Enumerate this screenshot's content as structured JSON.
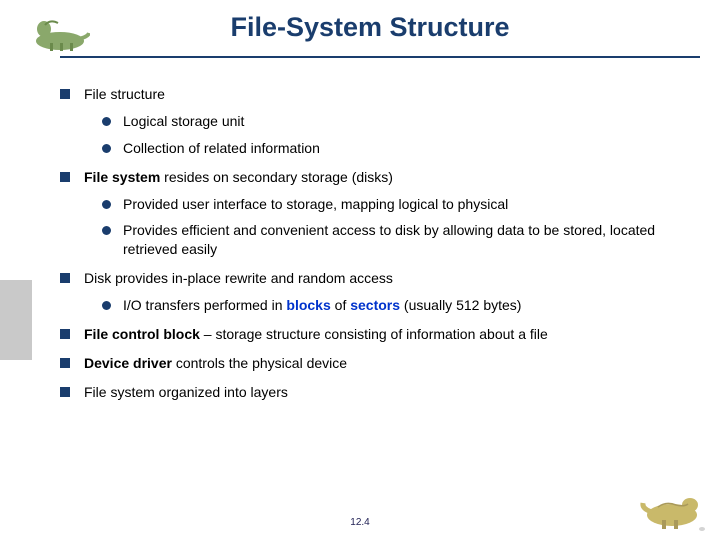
{
  "page": {
    "title": "File-System Structure",
    "pageNumber": "12.4"
  },
  "colors": {
    "heading": "#1a3d6d",
    "bulletSquare": "#1a3d6d",
    "bulletDot": "#1a3d6d",
    "link": "#0033cc",
    "sidebar": "#c9c9c9"
  },
  "items": [
    {
      "text": "File structure",
      "sub": [
        {
          "text": "Logical storage unit"
        },
        {
          "text": "Collection of related information"
        }
      ]
    },
    {
      "html": "<span class='bold'>File system</span> resides on secondary storage (disks)",
      "sub": [
        {
          "text": "Provided user interface to storage, mapping logical to physical"
        },
        {
          "text": "Provides efficient and convenient access to disk by allowing data to be stored, located retrieved easily"
        }
      ]
    },
    {
      "text": "Disk provides in-place rewrite and random access",
      "sub": [
        {
          "html": "I/O transfers performed in <span class='blue'>blocks</span> of <span class='blue'>sectors</span> (usually 512 bytes)"
        }
      ]
    },
    {
      "html": "<span class='bold'>File control block</span> – storage structure consisting of information about a file"
    },
    {
      "html": "<span class='bold'>Device driver</span> controls the physical device"
    },
    {
      "text": "File system organized into layers"
    }
  ]
}
